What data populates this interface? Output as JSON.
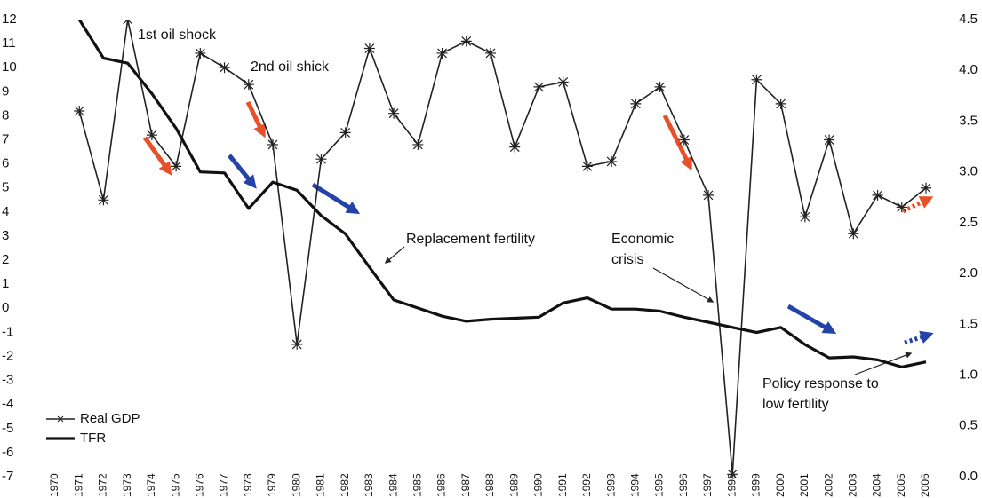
{
  "chart_data": {
    "type": "line",
    "x": [
      1970,
      1971,
      1972,
      1973,
      1974,
      1975,
      1976,
      1977,
      1978,
      1979,
      1980,
      1981,
      1982,
      1983,
      1984,
      1985,
      1986,
      1987,
      1988,
      1989,
      1990,
      1991,
      1992,
      1993,
      1994,
      1995,
      1996,
      1997,
      1998,
      1999,
      2000,
      2001,
      2002,
      2003,
      2004,
      2005,
      2006
    ],
    "xlim": [
      1970,
      2006
    ],
    "ylim": [
      -7,
      12
    ],
    "yticks": [
      -7,
      -6,
      -5,
      -4,
      -3,
      -2,
      -1,
      0,
      1,
      2,
      3,
      4,
      5,
      6,
      7,
      8,
      9,
      10,
      11,
      12
    ],
    "y2lim": [
      0,
      4.5
    ],
    "y2ticks": [
      {
        "value": 0,
        "label": "0.0"
      },
      0.5,
      {
        "value": 1,
        "label": "1.0"
      },
      1.5,
      {
        "value": 2,
        "label": "2.0"
      },
      2.5,
      {
        "value": 3,
        "label": "3.0"
      },
      3.5,
      {
        "value": 4,
        "label": "4.0"
      },
      4.5
    ],
    "series": [
      {
        "name": "Real GDP",
        "color": "#222222",
        "marker": "asterisk",
        "values": [
          null,
          8.2,
          4.5,
          12.0,
          7.2,
          5.9,
          10.6,
          10.0,
          9.3,
          6.8,
          -1.5,
          6.2,
          7.3,
          10.8,
          8.1,
          6.8,
          10.6,
          11.1,
          10.6,
          6.7,
          9.2,
          9.4,
          5.9,
          6.1,
          8.5,
          9.2,
          7.0,
          4.7,
          -6.9,
          9.5,
          8.5,
          3.8,
          7.0,
          3.1,
          4.7,
          4.2,
          5.0
        ]
      },
      {
        "name": "TFR",
        "color": "#111111",
        "axis": "y2",
        "values": [
          null,
          4.5,
          4.12,
          4.07,
          3.77,
          3.43,
          3.0,
          2.99,
          2.64,
          2.9,
          2.82,
          2.57,
          2.39,
          2.06,
          1.74,
          1.66,
          1.58,
          1.53,
          1.55,
          1.56,
          1.57,
          1.71,
          1.76,
          1.65,
          1.65,
          1.63,
          1.57,
          1.52,
          1.47,
          1.42,
          1.47,
          1.3,
          1.17,
          1.18,
          1.15,
          1.08,
          1.13
        ]
      }
    ],
    "annotations": [
      {
        "lines": [
          "1st oil shock"
        ]
      },
      {
        "lines": [
          "2nd oil shick"
        ]
      },
      {
        "lines": [
          "Replacement fertility"
        ]
      },
      {
        "lines": [
          "Economic",
          "crisis"
        ]
      },
      {
        "lines": [
          "Policy response to",
          "low fertility"
        ]
      }
    ],
    "legend": "lower left"
  }
}
